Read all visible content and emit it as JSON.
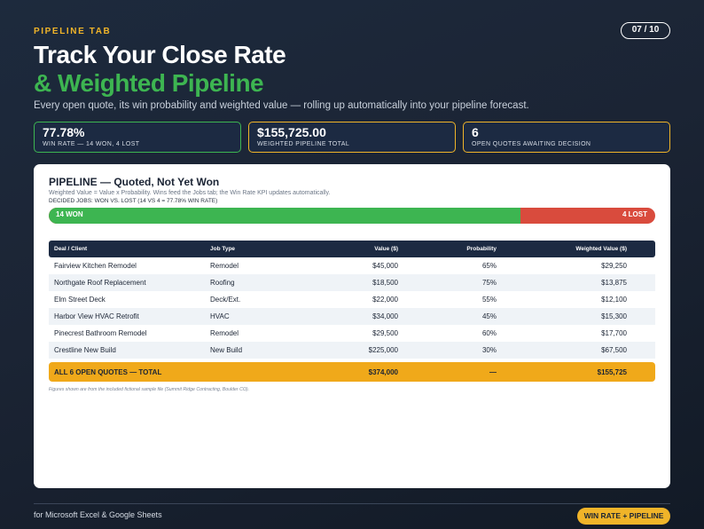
{
  "header": {
    "eyebrow": "PIPELINE TAB",
    "page_indicator": "07 / 10",
    "title_line1": "Track Your Close Rate",
    "title_line2": "& Weighted Pipeline",
    "subtitle": "Every open quote, its win probability and weighted value — rolling up automatically into your pipeline forecast."
  },
  "kpis": [
    {
      "value": "77.78%",
      "label": "WIN RATE — 14 WON, 4 LOST",
      "accent": "#3db551"
    },
    {
      "value": "$155,725.00",
      "label": "WEIGHTED PIPELINE TOTAL",
      "accent": "#f0b429"
    },
    {
      "value": "6",
      "label": "OPEN QUOTES AWAITING DECISION",
      "accent": "#f0b429"
    }
  ],
  "pipeline": {
    "title": "PIPELINE — Quoted, Not Yet Won",
    "note": "Weighted Value = Value x Probability. Wins feed the Jobs tab; the Win Rate KPI updates automatically.",
    "decided": "DECIDED JOBS: WON VS. LOST (14 vs 4 = 77.78% WIN RATE)",
    "winbar": {
      "won_label": "14 WON",
      "lost_label": "4 LOST",
      "won": 14,
      "lost": 4,
      "won_color": "#3db551",
      "lost_color": "#d94b3d"
    },
    "columns": [
      "Deal / Client",
      "Job Type",
      "Value ($)",
      "Probability",
      "Weighted Value ($)"
    ],
    "rows": [
      [
        "Fairview Kitchen Remodel",
        "Remodel",
        "$45,000",
        "65%",
        "$29,250"
      ],
      [
        "Northgate Roof Replacement",
        "Roofing",
        "$18,500",
        "75%",
        "$13,875"
      ],
      [
        "Elm Street Deck",
        "Deck/Ext.",
        "$22,000",
        "55%",
        "$12,100"
      ],
      [
        "Harbor View HVAC Retrofit",
        "HVAC",
        "$34,000",
        "45%",
        "$15,300"
      ],
      [
        "Pinecrest Bathroom Remodel",
        "Remodel",
        "$29,500",
        "60%",
        "$17,700"
      ],
      [
        "Crestline New Build",
        "New Build",
        "$225,000",
        "30%",
        "$67,500"
      ]
    ],
    "total": {
      "label": "ALL 6 OPEN QUOTES — TOTAL",
      "value": "$374,000",
      "probability": "—",
      "weighted": "$155,725"
    },
    "footnote": "Figures shown are from the included fictional sample file (Summit Ridge Contracting, Boulder CO)."
  },
  "footer": {
    "left_text": "for Microsoft Excel & Google Sheets",
    "pill": "WIN RATE + PIPELINE"
  }
}
